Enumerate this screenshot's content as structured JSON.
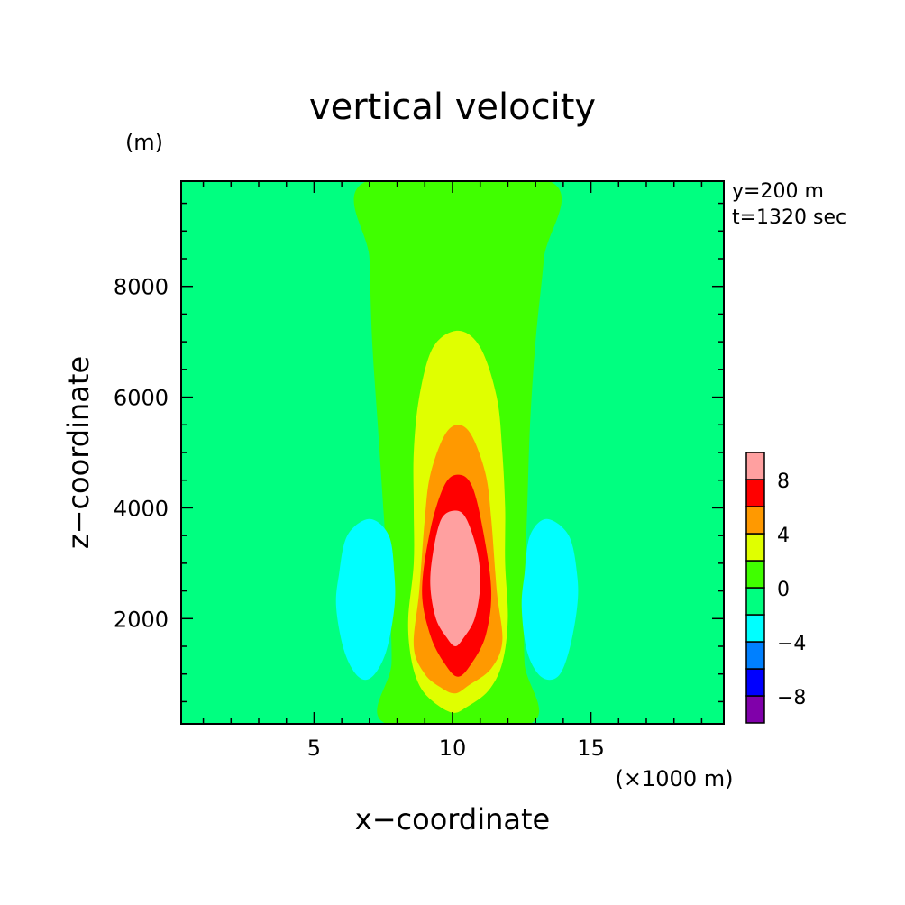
{
  "chart_data": {
    "type": "heatmap",
    "title": "vertical velocity",
    "xlabel": "x−coordinate",
    "ylabel": "z−coordinate",
    "x_unit": "(×1000 m)",
    "y_unit": "(m)",
    "annotations": [
      "y=200 m",
      "t=1320 sec"
    ],
    "xlim": [
      0.2,
      19.8
    ],
    "ylim": [
      100,
      9900
    ],
    "x_ticks": [
      5,
      10,
      15
    ],
    "x_tick_labels": [
      "5",
      "10",
      "15"
    ],
    "y_ticks": [
      2000,
      4000,
      6000,
      8000
    ],
    "y_tick_labels": [
      "2000",
      "4000",
      "6000",
      "8000"
    ],
    "grid": false,
    "colorbar": {
      "levels": [
        -10,
        -8,
        -6,
        -4,
        -2,
        0,
        2,
        4,
        6,
        8,
        10
      ],
      "colors": [
        "#8000aa",
        "#0000ff",
        "#0080ff",
        "#00ffff",
        "#00ff80",
        "#40ff00",
        "#e0ff00",
        "#ff9900",
        "#ff0000",
        "#ffa0a0"
      ],
      "tick_values": [
        -8,
        -4,
        0,
        4,
        8
      ],
      "tick_labels": [
        "−8",
        "−4",
        "0",
        "4",
        "8"
      ]
    },
    "regions": [
      {
        "level_range": [
          0,
          2
        ],
        "color": "#40ff00",
        "boundary": [
          [
            6.9,
            9900
          ],
          [
            7.0,
            8500
          ],
          [
            7.1,
            7000
          ],
          [
            7.3,
            5500
          ],
          [
            7.5,
            4000
          ],
          [
            7.7,
            2500
          ],
          [
            7.8,
            1200
          ],
          [
            7.6,
            100
          ],
          [
            12.8,
            100
          ],
          [
            12.6,
            1200
          ],
          [
            12.6,
            2500
          ],
          [
            12.7,
            4000
          ],
          [
            12.8,
            5500
          ],
          [
            13.0,
            7000
          ],
          [
            13.3,
            8500
          ],
          [
            13.5,
            9900
          ]
        ]
      },
      {
        "level_range": [
          2,
          4
        ],
        "color": "#e0ff00",
        "boundary": [
          [
            10.2,
            7200
          ],
          [
            11.0,
            6900
          ],
          [
            11.6,
            6000
          ],
          [
            11.8,
            5000
          ],
          [
            11.9,
            4000
          ],
          [
            11.9,
            3000
          ],
          [
            12.0,
            2000
          ],
          [
            11.8,
            1200
          ],
          [
            11.3,
            700
          ],
          [
            10.5,
            400
          ],
          [
            10.0,
            300
          ],
          [
            9.3,
            500
          ],
          [
            8.8,
            800
          ],
          [
            8.5,
            1300
          ],
          [
            8.4,
            2000
          ],
          [
            8.6,
            3000
          ],
          [
            8.6,
            4000
          ],
          [
            8.6,
            5000
          ],
          [
            8.8,
            6000
          ],
          [
            9.3,
            6900
          ]
        ]
      },
      {
        "level_range": [
          4,
          6
        ],
        "color": "#ff9900",
        "boundary": [
          [
            10.2,
            5500
          ],
          [
            10.7,
            5300
          ],
          [
            11.2,
            4600
          ],
          [
            11.4,
            3800
          ],
          [
            11.6,
            2500
          ],
          [
            11.8,
            1600
          ],
          [
            11.4,
            1100
          ],
          [
            10.6,
            800
          ],
          [
            10.1,
            650
          ],
          [
            9.6,
            750
          ],
          [
            9.0,
            1000
          ],
          [
            8.6,
            1500
          ],
          [
            8.8,
            2500
          ],
          [
            9.0,
            3800
          ],
          [
            9.2,
            4600
          ],
          [
            9.7,
            5300
          ]
        ]
      },
      {
        "level_range": [
          6,
          8
        ],
        "color": "#ff0000",
        "boundary": [
          [
            10.2,
            4600
          ],
          [
            10.7,
            4400
          ],
          [
            11.1,
            3600
          ],
          [
            11.4,
            2500
          ],
          [
            11.2,
            1700
          ],
          [
            10.7,
            1200
          ],
          [
            10.2,
            950
          ],
          [
            9.7,
            1200
          ],
          [
            9.2,
            1700
          ],
          [
            8.9,
            2500
          ],
          [
            9.2,
            3600
          ],
          [
            9.7,
            4400
          ]
        ]
      },
      {
        "level_range": [
          8,
          10
        ],
        "color": "#ffa0a0",
        "boundary": [
          [
            10.1,
            3950
          ],
          [
            10.5,
            3800
          ],
          [
            10.9,
            3200
          ],
          [
            11.0,
            2600
          ],
          [
            10.8,
            2000
          ],
          [
            10.4,
            1650
          ],
          [
            10.1,
            1500
          ],
          [
            9.8,
            1650
          ],
          [
            9.4,
            2000
          ],
          [
            9.2,
            2600
          ],
          [
            9.3,
            3200
          ],
          [
            9.6,
            3800
          ]
        ]
      },
      {
        "level_range": [
          -4,
          -2
        ],
        "color": "#00ffff",
        "boundary": [
          [
            7.0,
            3800
          ],
          [
            7.7,
            3500
          ],
          [
            7.9,
            2800
          ],
          [
            7.9,
            2200
          ],
          [
            7.6,
            1400
          ],
          [
            7.1,
            950
          ],
          [
            6.6,
            950
          ],
          [
            6.1,
            1400
          ],
          [
            5.8,
            2200
          ],
          [
            5.9,
            2800
          ],
          [
            6.2,
            3500
          ]
        ]
      },
      {
        "level_range": [
          -4,
          -2
        ],
        "color": "#00ffff",
        "boundary": [
          [
            13.4,
            3800
          ],
          [
            14.2,
            3500
          ],
          [
            14.5,
            2800
          ],
          [
            14.5,
            2200
          ],
          [
            14.2,
            1400
          ],
          [
            13.8,
            950
          ],
          [
            13.2,
            950
          ],
          [
            12.7,
            1400
          ],
          [
            12.5,
            2200
          ],
          [
            12.6,
            2800
          ],
          [
            12.8,
            3500
          ]
        ]
      }
    ]
  }
}
